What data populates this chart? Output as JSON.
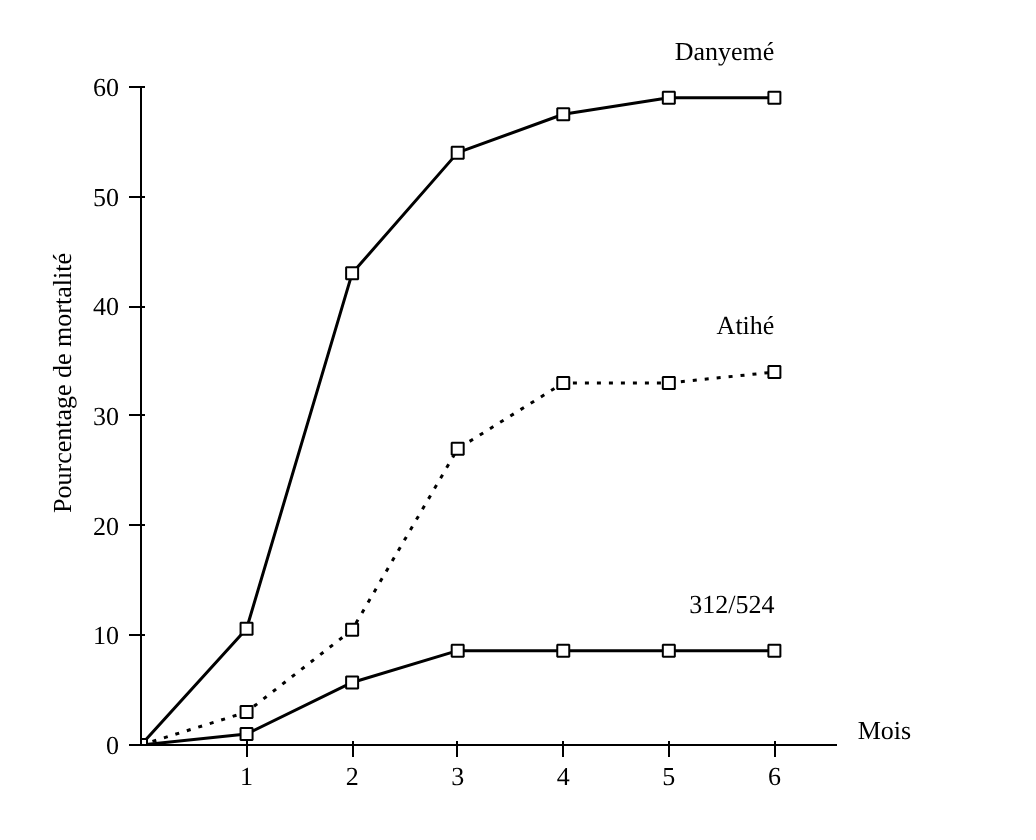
{
  "chart_data": {
    "type": "line",
    "ylabel": "Pourcentage de mortalité",
    "xlabel": "Mois",
    "x": [
      0,
      1,
      2,
      3,
      4,
      5,
      6
    ],
    "series": [
      {
        "name": "Danyemé",
        "color": "#000000",
        "line_style": "solid",
        "values": [
          0,
          10.6,
          43,
          54,
          57.5,
          59,
          59
        ]
      },
      {
        "name": "Atihé",
        "color": "#000000",
        "line_style": "dotted",
        "values": [
          0,
          3,
          10.5,
          27,
          33,
          33,
          34
        ]
      },
      {
        "name": "312/524",
        "color": "#000000",
        "line_style": "solid",
        "values": [
          0,
          1,
          5.7,
          8.6,
          8.6,
          8.6,
          8.6
        ]
      }
    ],
    "marker": "square",
    "grid": false,
    "xlim": [
      0,
      6.6
    ],
    "xticks": [
      1,
      2,
      3,
      4,
      5,
      6
    ],
    "ylim": [
      0,
      60
    ],
    "yticks": [
      0,
      10,
      20,
      30,
      40,
      50,
      60
    ]
  }
}
